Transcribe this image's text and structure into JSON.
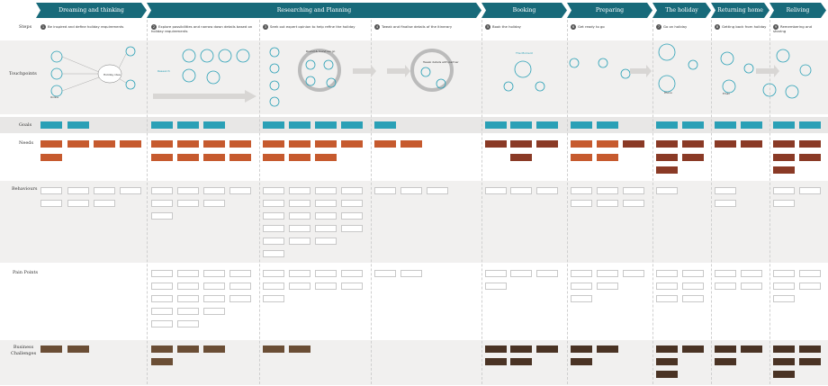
{
  "phases": [
    {
      "label": "Dreaming and thinking"
    },
    {
      "label": "Researching and Planning"
    },
    {
      "label": "Booking"
    },
    {
      "label": "Preparing"
    },
    {
      "label": "The holiday"
    },
    {
      "label": "Returning home"
    },
    {
      "label": "Reliving"
    }
  ],
  "rows": [
    {
      "label": "Steps"
    },
    {
      "label": "Touchpoints"
    },
    {
      "label": "Goals"
    },
    {
      "label": "Needs"
    },
    {
      "label": "Behaviours"
    },
    {
      "label": "Pain Points"
    },
    {
      "label": "Business Challenges"
    }
  ],
  "steps": [
    {
      "num": "1",
      "text": "Be inspired and define holiday requirements"
    },
    {
      "num": "2",
      "text": "Explore possibilities and narrow down details based on holiday requirements"
    },
    {
      "num": "3",
      "text": "Seek out expert opinion to help refine the holiday"
    },
    {
      "num": "4",
      "text": "Tweak and finalise details of the itinerary"
    },
    {
      "num": "5",
      "text": "Book the holiday"
    },
    {
      "num": "6",
      "text": "Get ready to go"
    },
    {
      "num": "7",
      "text": "Go on holiday"
    },
    {
      "num": "8",
      "text": "Getting back from holiday"
    },
    {
      "num": "9",
      "text": "Remembering and sharing"
    }
  ],
  "touchpoints": {
    "t1": "Holiday idea",
    "t2": "Research",
    "t3": "Round & round we go",
    "t4": "Tweak details with partner",
    "t5": "The Moment",
    "t6": "Online",
    "t7": "Phone",
    "t8": "Email"
  },
  "colors": {
    "header": "#186a7a",
    "goal": "#2aa0b6",
    "need": "#c65a2e",
    "biz": "#6b4e35",
    "circle": "#2aa0b6"
  }
}
